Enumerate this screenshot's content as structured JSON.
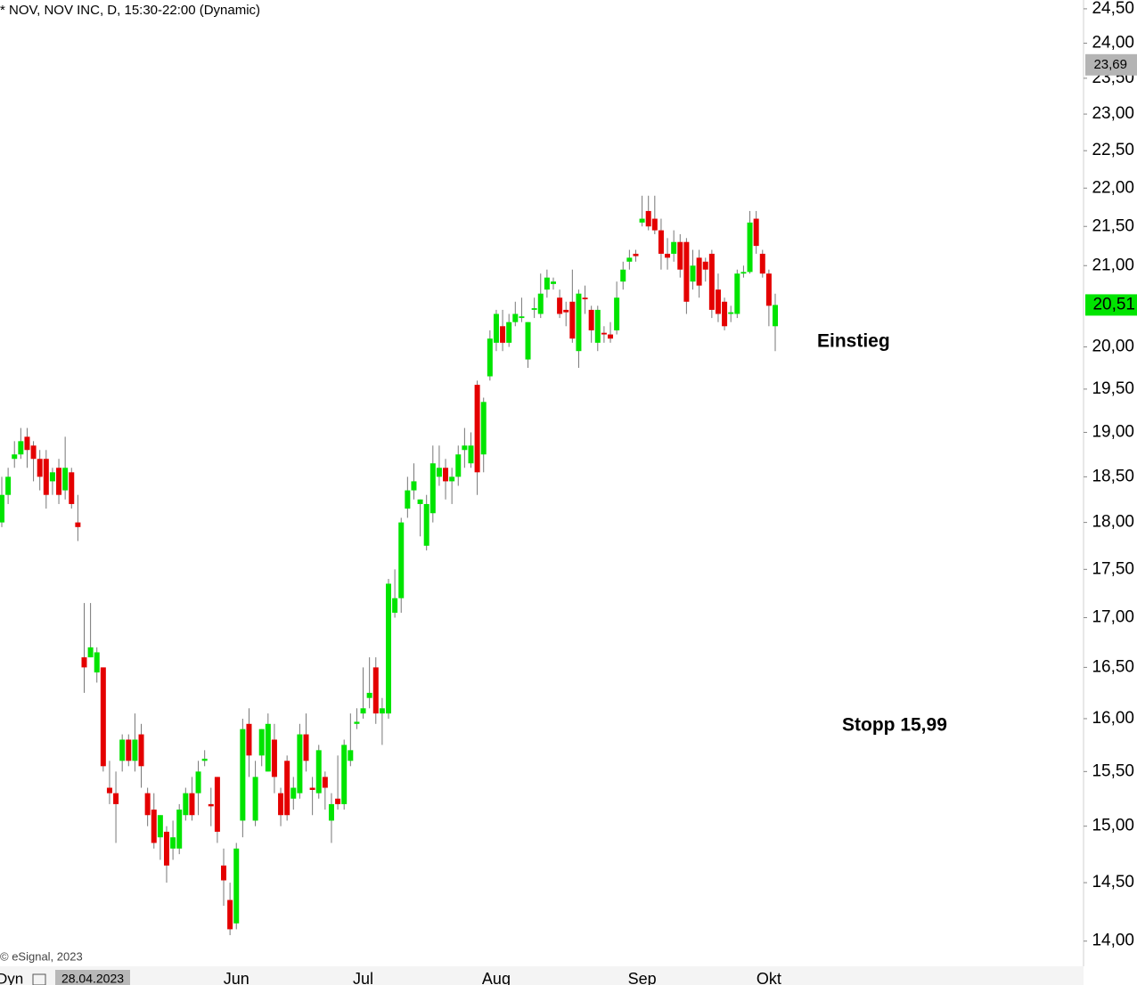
{
  "chart_data": {
    "type": "candlestick",
    "title": "* NOV, NOV INC, D, 15:30-22:00 (Dynamic)",
    "source": "© eSignal, 2023",
    "interval_label": "Dyn",
    "cursor_date": "28.04.2023",
    "log_scale": true,
    "up_color": "#00e400",
    "down_color": "#e40000",
    "categories": [
      null,
      null,
      null,
      null,
      null,
      null,
      null,
      null,
      null,
      null,
      null,
      null,
      null,
      null,
      null,
      null,
      null,
      null,
      null,
      null,
      null,
      null,
      null,
      null,
      null,
      null,
      null,
      null,
      null,
      null,
      null,
      null,
      null,
      null,
      null,
      null,
      null,
      "Jun",
      null,
      null,
      null,
      null,
      null,
      null,
      null,
      null,
      null,
      null,
      null,
      null,
      null,
      null,
      null,
      null,
      null,
      null,
      null,
      "Jul",
      null,
      null,
      null,
      null,
      null,
      null,
      null,
      null,
      null,
      null,
      null,
      null,
      null,
      null,
      null,
      null,
      null,
      null,
      null,
      null,
      "Aug",
      null,
      null,
      null,
      null,
      null,
      null,
      null,
      null,
      null,
      null,
      null,
      null,
      null,
      null,
      null,
      null,
      null,
      null,
      null,
      null,
      null,
      null,
      "Sep",
      null,
      null,
      null,
      null,
      null,
      null,
      null,
      null,
      null,
      null,
      null,
      null,
      null,
      null,
      null,
      null,
      null,
      null,
      null,
      "Okt",
      null
    ],
    "open": [
      18.0,
      18.3,
      18.7,
      18.75,
      18.95,
      18.85,
      18.7,
      18.7,
      18.45,
      18.6,
      18.35,
      18.55,
      18.0,
      16.6,
      16.6,
      16.45,
      16.5,
      15.35,
      15.3,
      15.6,
      15.8,
      15.6,
      15.85,
      15.3,
      15.15,
      14.9,
      14.95,
      14.8,
      14.8,
      15.1,
      15.3,
      15.3,
      15.6,
      15.2,
      15.45,
      14.65,
      14.35,
      14.15,
      15.05,
      15.95,
      15.05,
      15.65,
      15.5,
      15.8,
      15.3,
      15.6,
      15.25,
      15.3,
      15.85,
      15.35,
      15.3,
      15.45,
      15.05,
      15.25,
      15.2,
      15.6,
      15.95,
      16.05,
      16.2,
      16.5,
      16.05,
      16.05,
      17.05,
      17.2,
      18.15,
      18.35,
      18.2,
      17.75,
      18.1,
      18.5,
      18.6,
      18.45,
      18.5,
      18.8,
      18.65,
      19.55,
      18.75,
      19.65,
      20.05,
      20.25,
      20.05,
      20.3,
      20.35,
      19.85,
      20.45,
      20.4,
      20.7,
      20.77,
      20.6,
      20.45,
      20.55,
      19.95,
      20.6,
      20.45,
      20.05,
      20.17,
      20.15,
      20.2,
      20.8,
      21.05,
      21.15,
      21.55,
      21.7,
      21.6,
      21.45,
      21.15,
      21.15,
      21.3,
      21.3,
      20.8,
      21.1,
      21.05,
      21.15,
      20.7,
      20.55,
      20.4,
      20.4,
      20.9,
      20.92,
      21.6,
      21.15,
      20.9,
      20.25
    ],
    "high": [
      18.5,
      18.6,
      18.9,
      19.05,
      19.05,
      18.9,
      18.8,
      18.8,
      18.6,
      18.7,
      18.95,
      18.6,
      18.3,
      17.15,
      17.15,
      16.7,
      16.5,
      15.6,
      15.5,
      15.85,
      15.85,
      16.05,
      15.95,
      15.35,
      15.3,
      15.1,
      15.0,
      15.05,
      15.2,
      15.35,
      15.45,
      15.6,
      15.7,
      15.35,
      15.45,
      14.8,
      14.5,
      14.85,
      16.0,
      16.1,
      15.6,
      15.9,
      16.05,
      15.95,
      15.35,
      15.65,
      15.45,
      15.95,
      16.05,
      15.45,
      15.75,
      15.5,
      15.3,
      15.65,
      15.8,
      16.05,
      16.1,
      16.5,
      16.6,
      16.6,
      16.2,
      17.4,
      17.5,
      18.05,
      18.5,
      18.65,
      18.25,
      18.3,
      18.85,
      18.85,
      18.7,
      18.6,
      18.85,
      19.05,
      19.0,
      19.6,
      19.4,
      20.2,
      20.45,
      20.45,
      20.4,
      20.55,
      20.6,
      20.3,
      20.6,
      20.9,
      20.95,
      20.85,
      20.7,
      20.55,
      20.95,
      20.7,
      20.75,
      20.5,
      20.5,
      20.25,
      20.3,
      20.8,
      21.05,
      21.2,
      21.2,
      21.9,
      21.9,
      21.9,
      21.6,
      21.35,
      21.45,
      21.4,
      21.35,
      21.2,
      21.2,
      21.1,
      21.2,
      20.9,
      20.6,
      20.5,
      20.95,
      21.0,
      21.7,
      21.7,
      21.2,
      20.95,
      20.65
    ],
    "low": [
      17.95,
      18.2,
      18.6,
      18.7,
      18.6,
      18.45,
      18.35,
      18.15,
      18.3,
      18.2,
      18.25,
      18.15,
      17.8,
      16.25,
      16.6,
      16.35,
      15.5,
      15.2,
      14.85,
      15.5,
      15.55,
      15.5,
      15.35,
      15.0,
      14.8,
      14.7,
      14.5,
      14.7,
      14.75,
      15.05,
      15.05,
      15.1,
      15.55,
      15.0,
      14.85,
      14.3,
      14.05,
      14.1,
      14.9,
      15.45,
      15.0,
      15.55,
      15.5,
      15.3,
      15.0,
      15.05,
      15.15,
      15.25,
      15.5,
      15.1,
      15.25,
      15.15,
      14.85,
      15.15,
      15.15,
      15.55,
      15.9,
      16.0,
      16.1,
      15.95,
      15.75,
      16.0,
      17.0,
      17.05,
      18.05,
      18.25,
      17.85,
      17.7,
      18.0,
      18.4,
      18.25,
      18.2,
      18.4,
      18.6,
      18.6,
      18.3,
      18.55,
      19.6,
      19.95,
      19.95,
      20.0,
      20.25,
      20.3,
      19.75,
      20.35,
      20.35,
      20.6,
      20.7,
      20.35,
      20.25,
      20.05,
      19.75,
      20.4,
      20.05,
      19.95,
      20.05,
      20.05,
      20.15,
      20.7,
      20.95,
      21.05,
      21.5,
      21.45,
      21.4,
      20.95,
      20.95,
      21.05,
      20.85,
      20.4,
      20.7,
      20.6,
      20.8,
      20.35,
      20.3,
      20.2,
      20.3,
      20.35,
      20.85,
      20.9,
      21.15,
      20.85,
      20.25,
      19.95
    ],
    "close": [
      18.3,
      18.5,
      18.75,
      18.9,
      18.8,
      18.7,
      18.5,
      18.3,
      18.55,
      18.3,
      18.6,
      18.2,
      17.95,
      16.5,
      16.7,
      16.65,
      15.55,
      15.3,
      15.2,
      15.8,
      15.6,
      15.8,
      15.55,
      15.1,
      14.85,
      15.1,
      14.65,
      14.9,
      15.15,
      15.3,
      15.1,
      15.5,
      15.62,
      15.18,
      14.95,
      14.52,
      14.1,
      14.8,
      15.9,
      15.65,
      15.45,
      15.9,
      15.95,
      15.45,
      15.1,
      15.1,
      15.35,
      15.85,
      15.6,
      15.33,
      15.7,
      15.35,
      15.2,
      15.2,
      15.75,
      15.7,
      15.97,
      16.1,
      16.25,
      16.05,
      16.1,
      17.35,
      17.2,
      18.0,
      18.35,
      18.45,
      18.25,
      18.2,
      18.65,
      18.6,
      18.45,
      18.5,
      18.75,
      18.85,
      18.85,
      18.55,
      19.35,
      20.1,
      20.4,
      20.05,
      20.3,
      20.4,
      20.37,
      20.3,
      20.47,
      20.65,
      20.85,
      20.8,
      20.4,
      20.42,
      20.1,
      20.65,
      20.58,
      20.2,
      20.45,
      20.15,
      20.1,
      20.6,
      20.95,
      21.1,
      21.12,
      21.6,
      21.5,
      21.45,
      21.15,
      21.1,
      21.3,
      20.95,
      20.55,
      21.0,
      20.75,
      20.95,
      20.45,
      20.4,
      20.25,
      20.42,
      20.9,
      20.92,
      21.55,
      21.25,
      20.9,
      20.5,
      20.51
    ],
    "ylim": [
      13.79,
      24.63
    ],
    "yticks": [
      {
        "value": 14.0,
        "label": "14,00"
      },
      {
        "value": 14.5,
        "label": "14,50"
      },
      {
        "value": 15.0,
        "label": "15,00"
      },
      {
        "value": 15.5,
        "label": "15,50"
      },
      {
        "value": 16.0,
        "label": "16,00"
      },
      {
        "value": 16.5,
        "label": "16,50"
      },
      {
        "value": 17.0,
        "label": "17,00"
      },
      {
        "value": 17.5,
        "label": "17,50"
      },
      {
        "value": 18.0,
        "label": "18,00"
      },
      {
        "value": 18.5,
        "label": "18,50"
      },
      {
        "value": 19.0,
        "label": "19,00"
      },
      {
        "value": 19.5,
        "label": "19,50"
      },
      {
        "value": 20.0,
        "label": "20,00"
      },
      {
        "value": 21.0,
        "label": "21,00"
      },
      {
        "value": 21.5,
        "label": "21,50"
      },
      {
        "value": 22.0,
        "label": "22,00"
      },
      {
        "value": 22.5,
        "label": "22,50"
      },
      {
        "value": 23.0,
        "label": "23,00"
      },
      {
        "value": 23.5,
        "label": "23,50"
      },
      {
        "value": 24.0,
        "label": "24,00"
      },
      {
        "value": 24.5,
        "label": "24,50"
      }
    ],
    "price_markers": [
      {
        "value": 23.69,
        "label": "23,69",
        "color": "#b4b4b4"
      },
      {
        "value": 20.51,
        "label": "20,51",
        "color": "#00e400"
      }
    ],
    "annotations": [
      {
        "text": "Einstieg",
        "color": "#0000dd"
      },
      {
        "text": "Stopp 15,99",
        "color": "#ee0000"
      }
    ]
  }
}
